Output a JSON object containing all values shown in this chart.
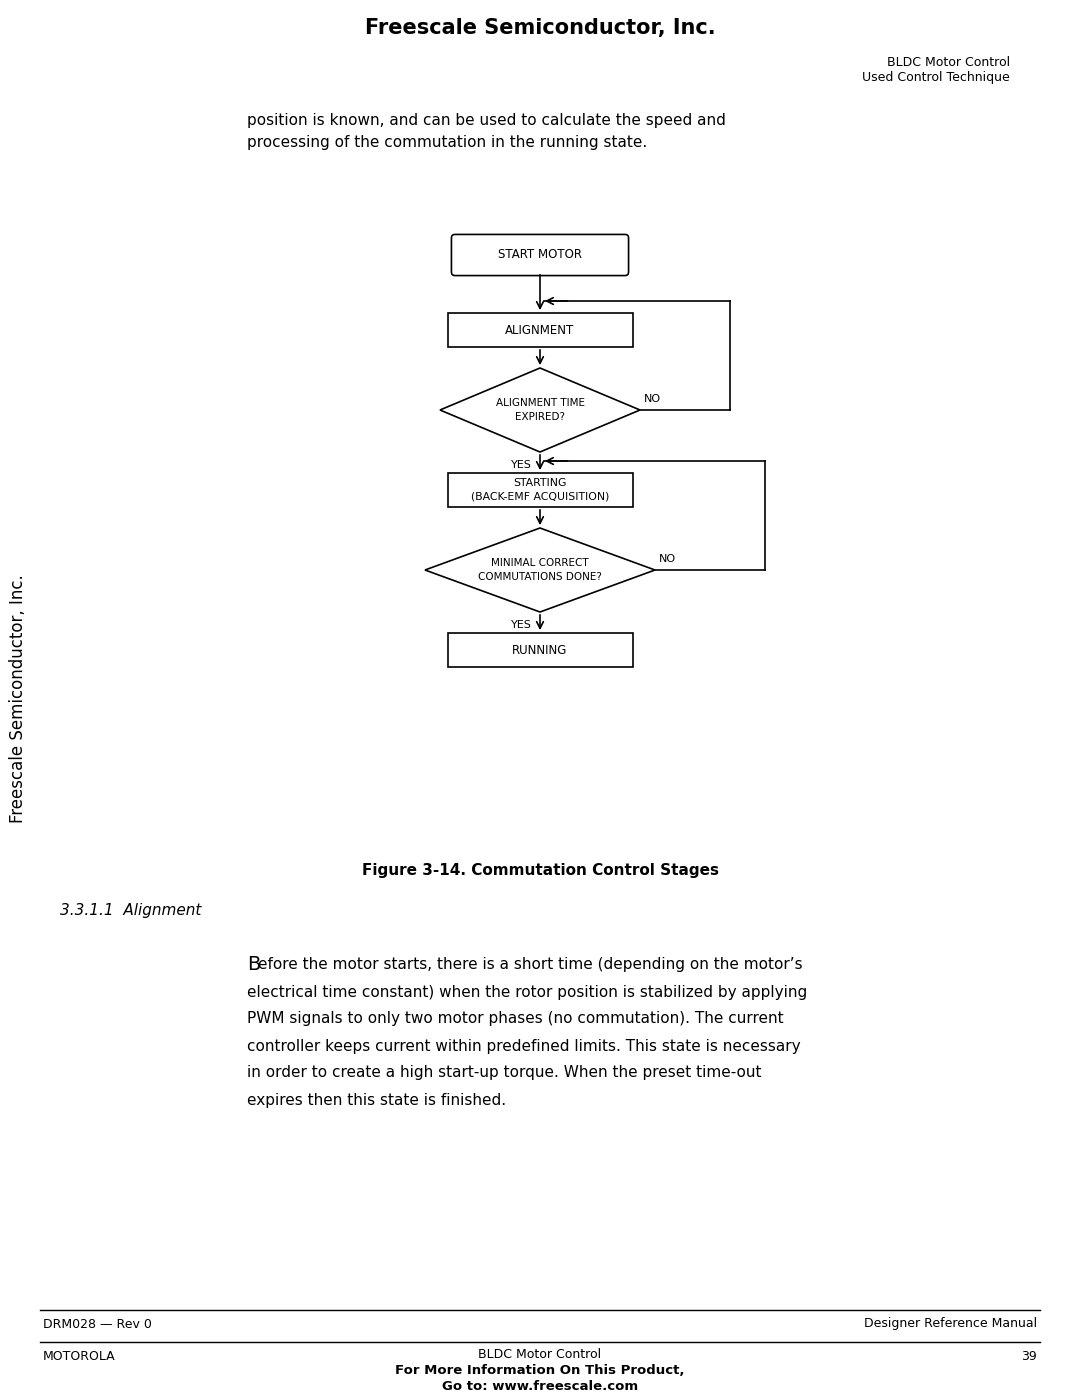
{
  "page_title": "Freescale Semiconductor, Inc.",
  "header_right_line1": "BLDC Motor Control",
  "header_right_line2": "Used Control Technique",
  "intro_text_line1": "position is known, and can be used to calculate the speed and",
  "intro_text_line2": "processing of the commutation in the running state.",
  "figure_caption": "Figure 3-14. Commutation Control Stages",
  "section_heading": "3.3.1.1  Alignment",
  "body_text_lines": [
    "Before the motor starts, there is a short time (depending on the motor’s",
    "electrical time constant) when the rotor position is stabilized by applying",
    "PWM signals to only two motor phases (no commutation). The current",
    "controller keeps current within predefined limits. This state is necessary",
    "in order to create a high start-up torque. When the preset time-out",
    "expires then this state is finished."
  ],
  "footer_left": "DRM028 — Rev 0",
  "footer_right": "Designer Reference Manual",
  "footer_bottom_left": "MOTOROLA",
  "footer_bottom_center1": "BLDC Motor Control",
  "footer_bottom_center2": "For More Information On This Product,",
  "footer_bottom_center3": "Go to: www.freescale.com",
  "footer_bottom_right": "39",
  "side_text": "Freescale Semiconductor, Inc.",
  "background_color": "#ffffff",
  "text_color": "#000000"
}
